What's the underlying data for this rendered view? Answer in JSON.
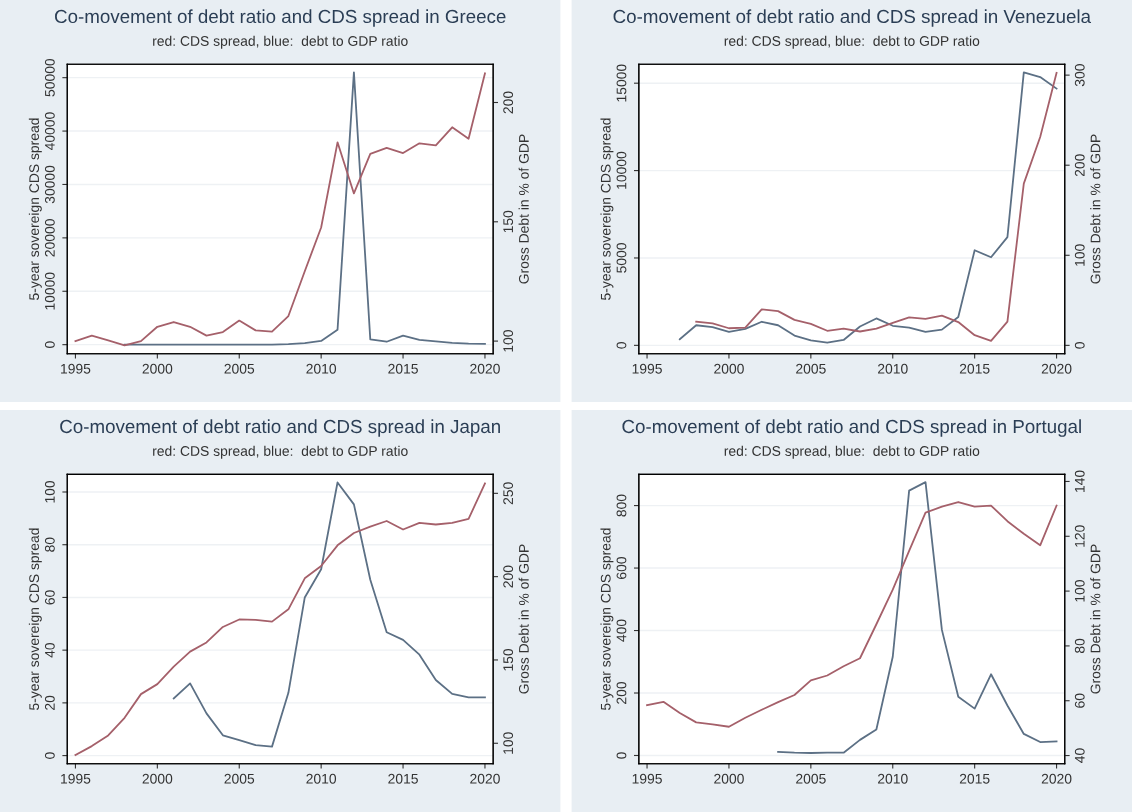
{
  "chart_data": [
    {
      "type": "line",
      "title": "Co-movement of debt ratio and CDS spread in Greece",
      "subtitle": "red: CDS spread, blue:  debt to GDP ratio",
      "ylabel": "5-year sovereign CDS spread",
      "y2label": "Gross Debt in % of GDP",
      "xlim": [
        1994.5,
        2020.5
      ],
      "xticks": [
        1995,
        2000,
        2005,
        2010,
        2015,
        2020
      ],
      "ylim": [
        -1700,
        52500
      ],
      "yticks": [
        0,
        10000,
        20000,
        30000,
        40000,
        50000
      ],
      "y2lim": [
        94.7,
        216
      ],
      "y2ticks": [
        100,
        150,
        200
      ],
      "grid": "y",
      "line_style": "solid",
      "series": [
        {
          "color": "#5c7085",
          "x": [
            1998,
            1999,
            2000,
            2001,
            2002,
            2003,
            2004,
            2005,
            2006,
            2007,
            2008,
            2009,
            2010,
            2011,
            2012,
            2013,
            2014,
            2015,
            2016,
            2017,
            2018,
            2019,
            2020
          ],
          "values": [
            0,
            0,
            0,
            0,
            0,
            0,
            0,
            0,
            0,
            0,
            100,
            300,
            700,
            2800,
            51000,
            1000,
            550,
            1700,
            900,
            600,
            350,
            200,
            150
          ]
        },
        {
          "color": "#a5606a",
          "axis": "y2",
          "x": [
            1995,
            1996,
            1997,
            1998,
            1999,
            2000,
            2001,
            2002,
            2003,
            2004,
            2005,
            2006,
            2007,
            2008,
            2009,
            2010,
            2011,
            2012,
            2013,
            2014,
            2015,
            2016,
            2017,
            2018,
            2019,
            2020
          ],
          "values": [
            100,
            102.3,
            100.3,
            98.2,
            100,
            106,
            108,
            106,
            102.3,
            103.8,
            108.6,
            104.5,
            104,
            110.5,
            129.3,
            147.6,
            183.3,
            161.9,
            178.5,
            181,
            178.8,
            182.9,
            182,
            189.6,
            184.8,
            212.2
          ]
        }
      ]
    },
    {
      "type": "line",
      "title": "Co-movement of debt ratio and CDS spread in Venezuela",
      "subtitle": "red: CDS spread, blue:  debt to GDP ratio",
      "ylabel": "5-year sovereign CDS spread",
      "y2label": "Gross Debt in % of GDP",
      "xlim": [
        1994.5,
        2020.5
      ],
      "xticks": [
        1995,
        2000,
        2005,
        2010,
        2015,
        2020
      ],
      "ylim": [
        -480,
        16080
      ],
      "yticks": [
        0,
        5000,
        10000,
        15000
      ],
      "y2lim": [
        -9.3,
        312
      ],
      "y2ticks": [
        0,
        100,
        200,
        300
      ],
      "grid": "y",
      "line_style": "solid",
      "series": [
        {
          "color": "#5c7085",
          "x": [
            1997,
            1998,
            1999,
            2000,
            2001,
            2002,
            2003,
            2004,
            2005,
            2006,
            2007,
            2008,
            2009,
            2010,
            2011,
            2012,
            2013,
            2014,
            2015,
            2016,
            2017,
            2018,
            2019,
            2020
          ],
          "values": [
            350,
            1150,
            1040,
            770,
            940,
            1350,
            1150,
            560,
            290,
            150,
            310,
            1080,
            1540,
            1120,
            1020,
            770,
            900,
            1620,
            5440,
            5040,
            6190,
            15620,
            15350,
            14690
          ]
        },
        {
          "color": "#a5606a",
          "axis": "y2",
          "x": [
            1998,
            1999,
            2000,
            2001,
            2002,
            2003,
            2004,
            2005,
            2006,
            2007,
            2008,
            2009,
            2010,
            2011,
            2012,
            2013,
            2014,
            2015,
            2016,
            2017,
            2018,
            2019,
            2020
          ],
          "values": [
            26.3,
            24.3,
            19,
            19.8,
            40,
            38,
            28.3,
            23.9,
            16.2,
            18.6,
            15.4,
            18.6,
            25,
            31,
            29.5,
            33,
            25.9,
            11.3,
            4.9,
            26.3,
            179.5,
            231.3,
            302.5
          ]
        }
      ]
    },
    {
      "type": "line",
      "title": "Co-movement of debt ratio and CDS spread in Japan",
      "subtitle": "red: CDS spread, blue:  debt to GDP ratio",
      "ylabel": "5-year sovereign CDS spread",
      "y2label": "Gross Debt in % of GDP",
      "xlim": [
        1994.5,
        2020.5
      ],
      "xticks": [
        1995,
        2000,
        2005,
        2010,
        2015,
        2020
      ],
      "ylim": [
        -3.1,
        106.7
      ],
      "yticks": [
        0,
        20,
        40,
        60,
        80,
        100
      ],
      "y2lim": [
        87.7,
        261.4
      ],
      "y2ticks": [
        100,
        150,
        200,
        250
      ],
      "grid": "y",
      "line_style": "solid",
      "series": [
        {
          "color": "#5c7085",
          "x": [
            2001,
            2002,
            2003,
            2004,
            2005,
            2006,
            2007,
            2008,
            2009,
            2010,
            2011,
            2012,
            2013,
            2014,
            2015,
            2016,
            2017,
            2018,
            2019,
            2020
          ],
          "values": [
            21.7,
            27.4,
            16,
            7.7,
            5.9,
            4,
            3.4,
            23.8,
            60,
            70.7,
            103.6,
            95.3,
            66.7,
            46.8,
            43.9,
            38.3,
            28.7,
            23.4,
            22.1,
            22.1
          ]
        },
        {
          "color": "#a5606a",
          "axis": "y2",
          "x": [
            1995,
            1996,
            1997,
            1998,
            1999,
            2000,
            2001,
            2002,
            2003,
            2004,
            2005,
            2006,
            2007,
            2008,
            2009,
            2010,
            2011,
            2012,
            2013,
            2014,
            2015,
            2016,
            2017,
            2018,
            2019,
            2020
          ],
          "values": [
            93,
            98.3,
            104.7,
            115.3,
            129.5,
            135.5,
            146,
            155,
            160.5,
            169.8,
            174.3,
            174.1,
            173,
            180.4,
            199,
            206.4,
            218.8,
            226.2,
            230,
            233.4,
            228.3,
            232.3,
            231.3,
            232.3,
            234.7,
            255.9
          ]
        }
      ]
    },
    {
      "type": "line",
      "title": "Co-movement of debt ratio and CDS spread in Portugal",
      "subtitle": "red: CDS spread, blue:  debt to GDP ratio",
      "ylabel": "5-year sovereign CDS spread",
      "y2label": "Gross Debt in % of GDP",
      "xlim": [
        1994.5,
        2020.5
      ],
      "xticks": [
        1995,
        2000,
        2005,
        2010,
        2015,
        2020
      ],
      "ylim": [
        -26.5,
        900
      ],
      "yticks": [
        0,
        200,
        400,
        600,
        800
      ],
      "y2lim": [
        37,
        142.6
      ],
      "y2ticks": [
        40,
        60,
        80,
        100,
        120,
        140
      ],
      "grid": "y",
      "line_style": "solid",
      "series": [
        {
          "color": "#5c7085",
          "x": [
            2003,
            2004,
            2005,
            2006,
            2007,
            2008,
            2009,
            2010,
            2011,
            2012,
            2013,
            2014,
            2015,
            2016,
            2017,
            2018,
            2019,
            2020
          ],
          "values": [
            11.5,
            9,
            8,
            9,
            9,
            50,
            83,
            316,
            848,
            875,
            402,
            188,
            150,
            260,
            160,
            69,
            43,
            45
          ]
        },
        {
          "color": "#a5606a",
          "axis": "y2",
          "x": [
            1995,
            1996,
            1997,
            1998,
            1999,
            2000,
            2001,
            2002,
            2003,
            2004,
            2005,
            2006,
            2007,
            2008,
            2009,
            2010,
            2011,
            2012,
            2013,
            2014,
            2015,
            2016,
            2017,
            2018,
            2019,
            2020
          ],
          "values": [
            58.4,
            59.6,
            55.5,
            52.1,
            51.4,
            50.5,
            53.8,
            56.7,
            59.5,
            62.1,
            67.4,
            69.2,
            72.6,
            75.5,
            87.9,
            100.5,
            114.7,
            128.6,
            130.8,
            132.5,
            130.8,
            131.2,
            125.5,
            120.9,
            116.7,
            131.2
          ]
        }
      ]
    }
  ]
}
